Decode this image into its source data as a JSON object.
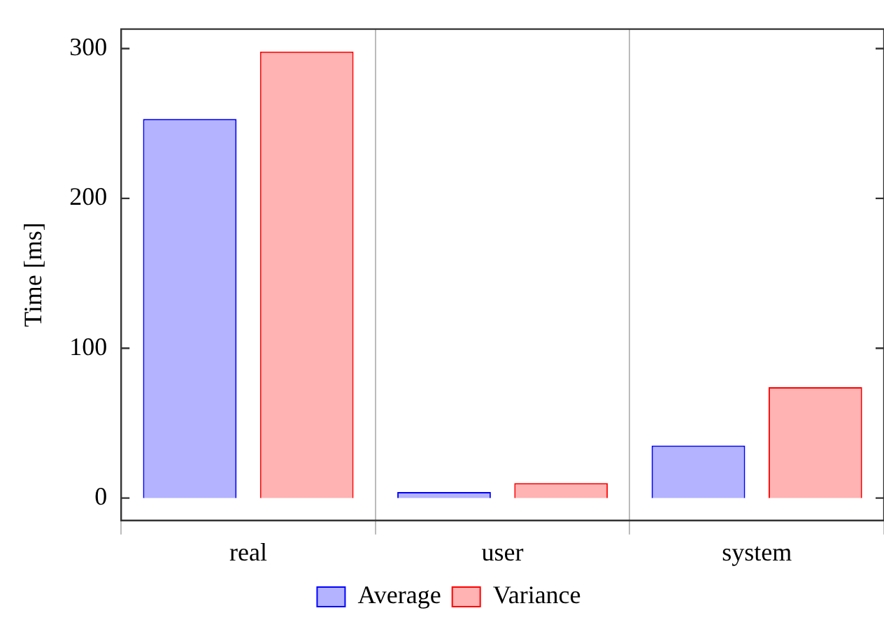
{
  "chart_data": {
    "type": "bar",
    "ylabel": "Time [ms]",
    "categories": [
      "real",
      "user",
      "system"
    ],
    "series": [
      {
        "name": "Average",
        "color": "#b3b3ff",
        "values": [
          253,
          4,
          35
        ]
      },
      {
        "name": "Variance",
        "color": "#ffb3b3",
        "values": [
          298,
          10,
          74
        ]
      }
    ],
    "ylim": [
      -15,
      313
    ],
    "yticks": [
      0,
      100,
      200,
      300
    ],
    "grid": "x",
    "legend": "bottom"
  }
}
